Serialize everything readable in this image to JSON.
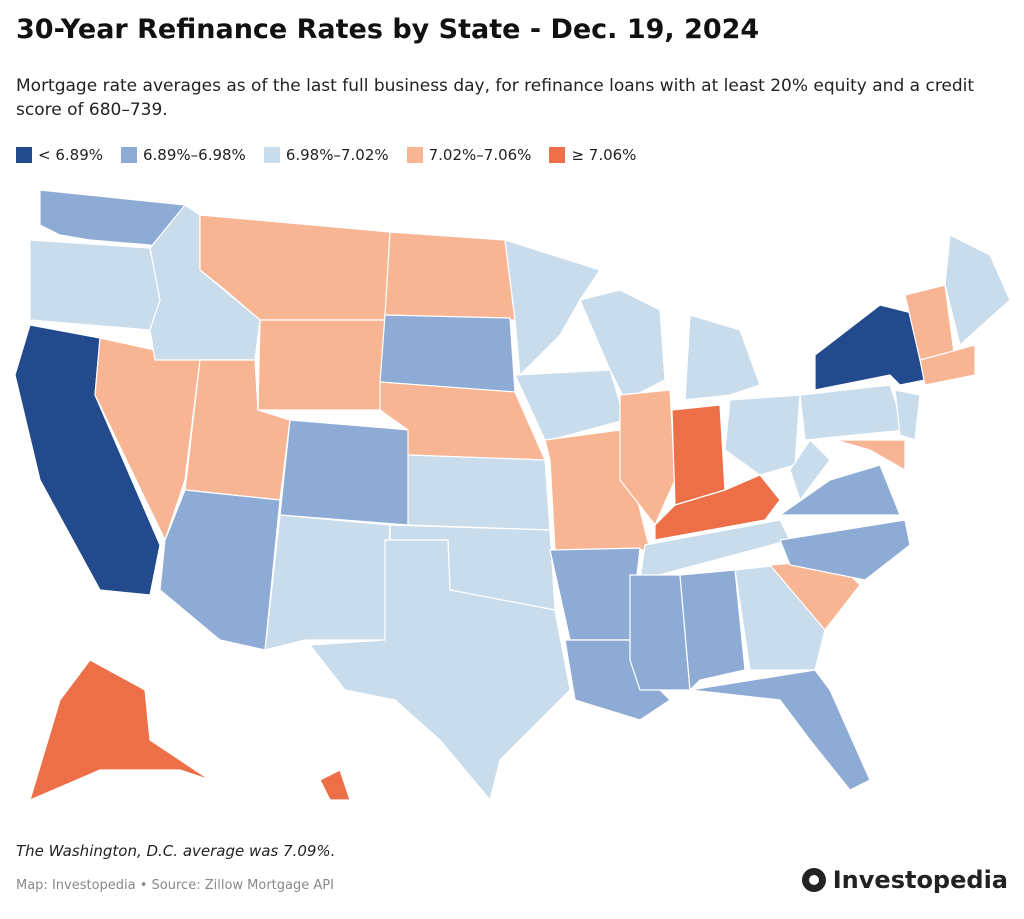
{
  "header": {
    "title": "30-Year Refinance Rates by State - Dec. 19, 2024",
    "subtitle": "Mortgage rate averages as of the last full business day, for refinance loans with at least 20% equity and a credit score of 680–739."
  },
  "legend": [
    {
      "label": "< 6.89%",
      "color": "#234a8c"
    },
    {
      "label": "6.89%–6.98%",
      "color": "#8dabd4"
    },
    {
      "label": "6.98%–7.02%",
      "color": "#c9dcec"
    },
    {
      "label": "7.02%–7.06%",
      "color": "#f8b594"
    },
    {
      "label": "≥ 7.06%",
      "color": "#ec6f48"
    }
  ],
  "footer": {
    "note": "The Washington, D.C. average was 7.09%.",
    "source": "Map: Investopedia • Source: Zillow Mortgage API",
    "brand": "Investopedia"
  }
}
